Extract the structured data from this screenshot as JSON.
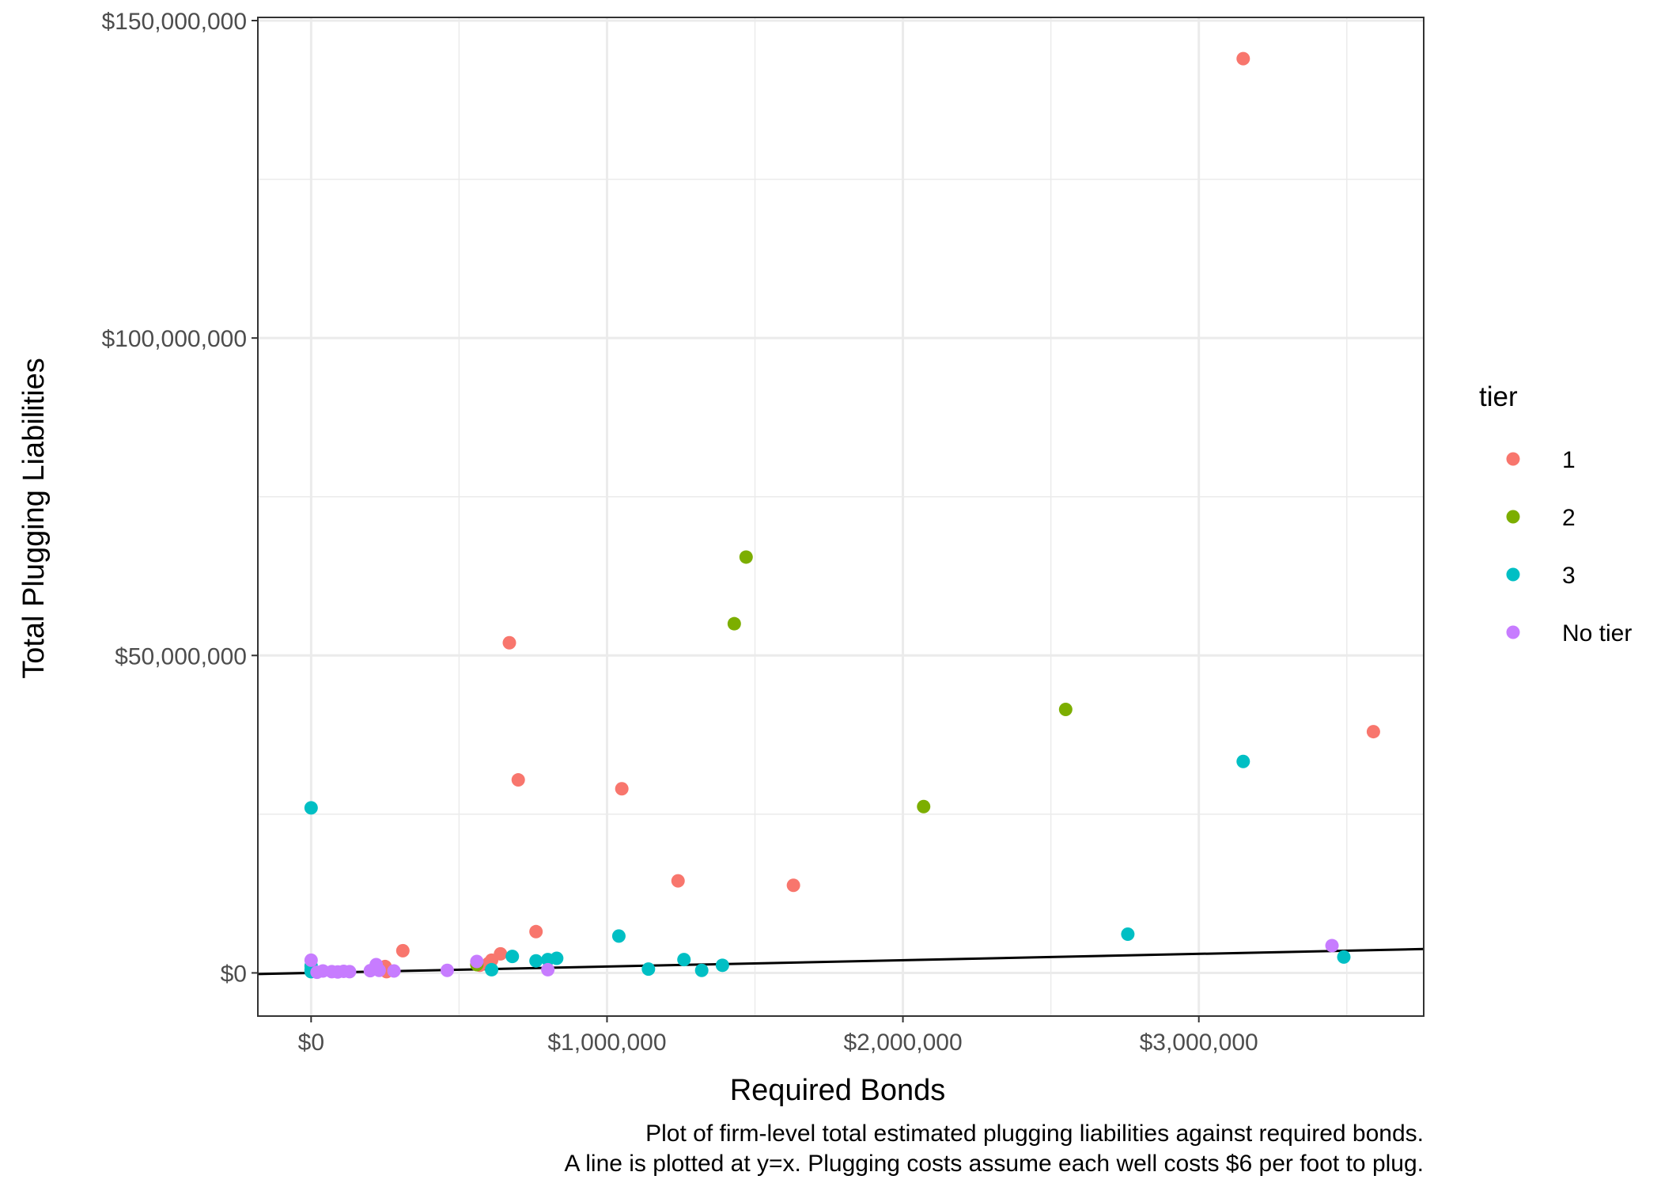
{
  "chart_data": {
    "type": "scatter",
    "title": "",
    "xlabel": "Required Bonds",
    "ylabel": "Total Plugging Liabilities",
    "xlim": [
      -180000,
      3760000
    ],
    "ylim": [
      -6800000,
      150500000
    ],
    "x_ticks": [
      0,
      1000000,
      2000000,
      3000000
    ],
    "x_tick_labels": [
      "$0",
      "$1,000,000",
      "$2,000,000",
      "$3,000,000"
    ],
    "y_ticks": [
      0,
      50000000,
      100000000,
      150000000
    ],
    "y_tick_labels": [
      "$0",
      "$50,000,000",
      "$100,000,000",
      "$150,000,000"
    ],
    "grid": true,
    "legend_title": "tier",
    "legend_position": "right",
    "reference_line": {
      "type": "y=x"
    },
    "caption": [
      "Plot of firm-level total estimated plugging liabilities against required bonds.",
      "A line is plotted at y=x. Plugging costs assume each well costs $6 per foot to plug."
    ],
    "series": [
      {
        "name": "1",
        "color": "#F8766D",
        "points": [
          [
            3150000,
            144000000
          ],
          [
            3590000,
            38000000
          ],
          [
            670000,
            52000000
          ],
          [
            700000,
            30400000
          ],
          [
            1050000,
            29000000
          ],
          [
            1240000,
            14500000
          ],
          [
            1630000,
            13800000
          ],
          [
            760000,
            6500000
          ],
          [
            310000,
            3500000
          ],
          [
            640000,
            3000000
          ],
          [
            610000,
            2000000
          ],
          [
            600000,
            1500000
          ],
          [
            250000,
            1000000
          ],
          [
            240000,
            500000
          ],
          [
            255000,
            200000
          ],
          [
            570000,
            1200000
          ]
        ]
      },
      {
        "name": "2",
        "color": "#7CAE00",
        "points": [
          [
            1470000,
            65500000
          ],
          [
            1430000,
            55000000
          ],
          [
            2550000,
            41500000
          ],
          [
            2070000,
            26200000
          ],
          [
            560000,
            1300000
          ]
        ]
      },
      {
        "name": "3",
        "color": "#00BFC4",
        "points": [
          [
            0,
            26000000
          ],
          [
            3150000,
            33300000
          ],
          [
            2760000,
            6100000
          ],
          [
            1040000,
            5800000
          ],
          [
            3490000,
            2500000
          ],
          [
            1260000,
            2100000
          ],
          [
            1390000,
            1200000
          ],
          [
            1140000,
            600000
          ],
          [
            1320000,
            400000
          ],
          [
            680000,
            2600000
          ],
          [
            760000,
            1900000
          ],
          [
            800000,
            2100000
          ],
          [
            830000,
            2300000
          ],
          [
            610000,
            500000
          ],
          [
            0,
            1100000
          ],
          [
            0,
            500000
          ],
          [
            0,
            200000
          ]
        ]
      },
      {
        "name": "No tier",
        "color": "#C77CFF",
        "points": [
          [
            3450000,
            4300000
          ],
          [
            0,
            2000000
          ],
          [
            40000,
            300000
          ],
          [
            70000,
            200000
          ],
          [
            90000,
            150000
          ],
          [
            110000,
            250000
          ],
          [
            130000,
            200000
          ],
          [
            200000,
            350000
          ],
          [
            220000,
            1300000
          ],
          [
            230000,
            400000
          ],
          [
            280000,
            300000
          ],
          [
            460000,
            400000
          ],
          [
            560000,
            1800000
          ],
          [
            800000,
            500000
          ],
          [
            20000,
            100000
          ]
        ]
      }
    ]
  }
}
